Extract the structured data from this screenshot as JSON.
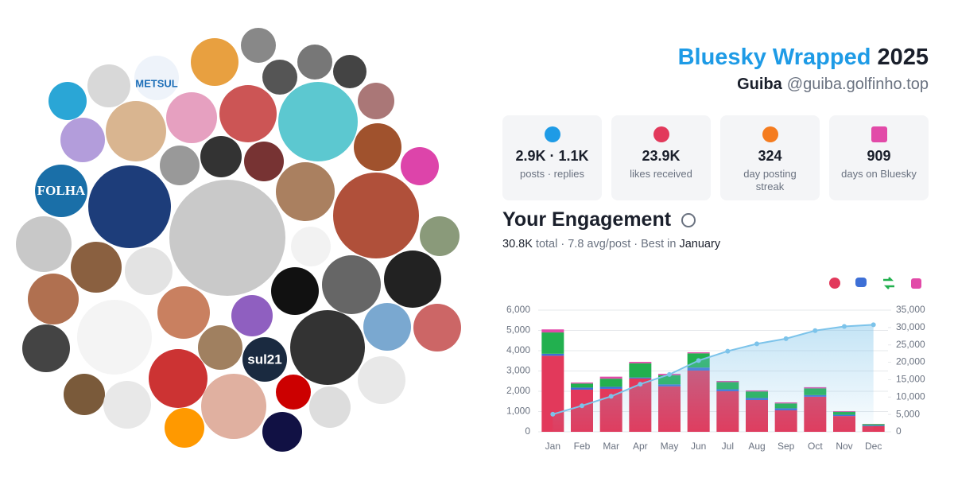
{
  "header": {
    "title": "Bluesky Wrapped",
    "year": "2025",
    "name": "Guiba",
    "handle": "@guiba.golfinho.top"
  },
  "avatar_texts": [
    "FOLHA",
    "METSUL",
    "sul21"
  ],
  "stats": [
    {
      "value": "2.9K · 1.1K",
      "label": "posts · replies"
    },
    {
      "value": "23.9K",
      "label": "likes received"
    },
    {
      "value": "324",
      "label": "day posting streak"
    },
    {
      "value": "909",
      "label": "days on Bluesky"
    }
  ],
  "engagement": {
    "title": "Your Engagement",
    "summary": [
      "30.8K",
      " total · 7.8 avg/post · Best in ",
      "January"
    ]
  },
  "chart_data": {
    "type": "bar",
    "categories": [
      "Jan",
      "Feb",
      "Mar",
      "Apr",
      "May",
      "Jun",
      "Jul",
      "Aug",
      "Sep",
      "Oct",
      "Nov",
      "Dec"
    ],
    "series": [
      {
        "color": "#e2395b",
        "values": [
          3750,
          2080,
          2120,
          2630,
          2240,
          3020,
          2000,
          1570,
          1060,
          1730,
          780,
          280
        ]
      },
      {
        "color": "#3d6fd6",
        "values": [
          100,
          100,
          100,
          50,
          100,
          150,
          100,
          100,
          100,
          80,
          60,
          40
        ]
      },
      {
        "color": "#22b04f",
        "values": [
          1050,
          200,
          400,
          700,
          450,
          700,
          350,
          320,
          240,
          330,
          150,
          60
        ]
      },
      {
        "color": "#e24aa8",
        "values": [
          150,
          50,
          100,
          70,
          70,
          50,
          60,
          50,
          50,
          60,
          30,
          10
        ]
      },
      {
        "type": "line",
        "axis": "y2",
        "color": "#7cc3ea",
        "values": [
          5050,
          7500,
          10200,
          13700,
          16500,
          20500,
          23200,
          25300,
          26800,
          29100,
          30300,
          30800
        ]
      }
    ],
    "stacked": true,
    "ylim": [
      0,
      6000
    ],
    "yticks": [
      0,
      {
        "value": 1000,
        "label": "1,000"
      },
      {
        "value": 2000,
        "label": "2,000"
      },
      {
        "value": 3000,
        "label": "3,000"
      },
      {
        "value": 4000,
        "label": "4,000"
      },
      {
        "value": 5000,
        "label": "5,000"
      },
      {
        "value": 6000,
        "label": "6,000"
      }
    ],
    "y2lim": [
      0,
      35000
    ],
    "y2ticks": [
      0,
      {
        "value": 5000,
        "label": "5,000"
      },
      {
        "value": 10000,
        "label": "10,000"
      },
      {
        "value": 15000,
        "label": "15,000"
      },
      {
        "value": 20000,
        "label": "20,000"
      },
      {
        "value": 25000,
        "label": "25,000"
      },
      {
        "value": 30000,
        "label": "30,000"
      },
      {
        "value": 35000,
        "label": "35,000"
      }
    ],
    "grid": true
  }
}
